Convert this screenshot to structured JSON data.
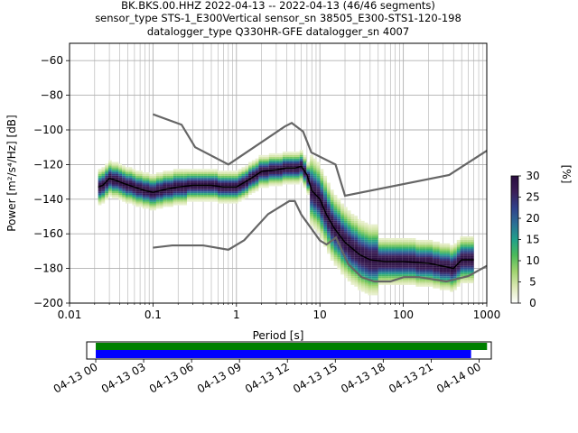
{
  "title_lines": [
    "BK.BKS.00.HHZ   2022-04-13 -- 2022-04-13  (46/46 segments)",
    "sensor_type STS-1_E300Vertical sensor_sn 38505_E300-STS1-120-198",
    "datalogger_type Q330HR-GFE datalogger_sn 4007"
  ],
  "chart_data": [
    {
      "type": "heatmap",
      "title": "BK.BKS.00.HHZ   2022-04-13 -- 2022-04-13  (46/46 segments)",
      "xlabel": "Period [s]",
      "ylabel": "Power [m²/s⁴/Hz] [dB]",
      "x_scale": "log",
      "xlim": [
        0.01,
        1000
      ],
      "ylim": [
        -200,
        -50
      ],
      "x_ticks": [
        0.01,
        0.1,
        1,
        10,
        100,
        1000
      ],
      "x_tick_labels": [
        "0.01",
        "0.1",
        "1",
        "10",
        "100",
        "1000"
      ],
      "y_ticks": [
        -200,
        -180,
        -160,
        -140,
        -120,
        -100,
        -80,
        -60
      ],
      "y_tick_labels": [
        "−200",
        "−180",
        "−160",
        "−140",
        "−120",
        "−100",
        "−80",
        "−60"
      ],
      "grid": true,
      "colorbar": {
        "label": "[%]",
        "range": [
          0,
          30
        ],
        "ticks": [
          0,
          5,
          10,
          15,
          20,
          25,
          30
        ],
        "tick_labels": [
          "0",
          "5",
          "10",
          "15",
          "20",
          "25",
          "30"
        ],
        "colors": [
          "#ffffff",
          "#dde9b6",
          "#9fd36e",
          "#4cba5a",
          "#21a08a",
          "#2b6f96",
          "#30408a",
          "#3b1e58",
          "#2a0d3e"
        ]
      },
      "series": [
        {
          "name": "",
          "role": "mode",
          "color": "#000000",
          "x": [
            0.022,
            0.025,
            0.03,
            0.035,
            0.045,
            0.06,
            0.08,
            0.1,
            0.15,
            0.2,
            0.3,
            0.5,
            0.7,
            1,
            1.5,
            2,
            3,
            4,
            5,
            6,
            7,
            8,
            10,
            12,
            15,
            20,
            30,
            40,
            60,
            100,
            200,
            400,
            500,
            700
          ],
          "y": [
            -133,
            -132,
            -128,
            -129,
            -131,
            -133,
            -135,
            -136,
            -134,
            -133,
            -132,
            -132,
            -133,
            -133,
            -128,
            -124,
            -123,
            -122,
            -122,
            -121,
            -126,
            -135,
            -140,
            -149,
            -157,
            -165,
            -172,
            -175,
            -176,
            -176,
            -177,
            -180,
            -175,
            -175
          ]
        },
        {
          "name": "",
          "role": "nhnm",
          "color": "#666666",
          "x": [
            0.1,
            0.22,
            0.32,
            0.8,
            3.8,
            4.6,
            6.3,
            7.9,
            15.4,
            20,
            354.8,
            1000
          ],
          "y": [
            -91,
            -97,
            -110,
            -120,
            -98,
            -96,
            -101,
            -113,
            -120,
            -138,
            -126,
            -112
          ]
        },
        {
          "name": "",
          "role": "nlnm",
          "color": "#666666",
          "x": [
            0.1,
            0.17,
            0.4,
            0.8,
            1.24,
            2.4,
            4.3,
            5,
            6,
            10,
            12,
            15.6,
            21.9,
            31.6,
            45,
            70,
            101,
            154,
            328,
            600,
            1000
          ],
          "y": [
            -168,
            -166.7,
            -166.7,
            -169.2,
            -163.7,
            -148.6,
            -141.1,
            -141.1,
            -149,
            -163.8,
            -166.2,
            -162.1,
            -177.5,
            -185,
            -187.5,
            -187.5,
            -185,
            -185,
            -187.5,
            -184.4,
            -178.5
          ]
        }
      ]
    },
    {
      "type": "bar",
      "title": "",
      "xlabel": "",
      "ylabel": "",
      "x_type": "datetime",
      "xlim": [
        "2022-04-12 23:26",
        "2022-04-14 00:46"
      ],
      "x_ticks": [
        "2022-04-13 00:00",
        "2022-04-13 03:00",
        "2022-04-13 06:00",
        "2022-04-13 09:00",
        "2022-04-13 12:00",
        "2022-04-13 15:00",
        "2022-04-13 18:00",
        "2022-04-13 21:00",
        "2022-04-14 00:00"
      ],
      "x_tick_labels": [
        "04-13 00",
        "04-13 03",
        "04-13 06",
        "04-13 09",
        "04-13 12",
        "04-13 15",
        "04-13 18",
        "04-13 21",
        "04-14 00"
      ],
      "series": [
        {
          "name": "",
          "color": "#008000",
          "start": "2022-04-13 00:00",
          "end": "2022-04-14 00:30"
        },
        {
          "name": "",
          "color": "#0000ff",
          "start": "2022-04-13 00:00",
          "end": "2022-04-13 23:30"
        }
      ]
    }
  ]
}
